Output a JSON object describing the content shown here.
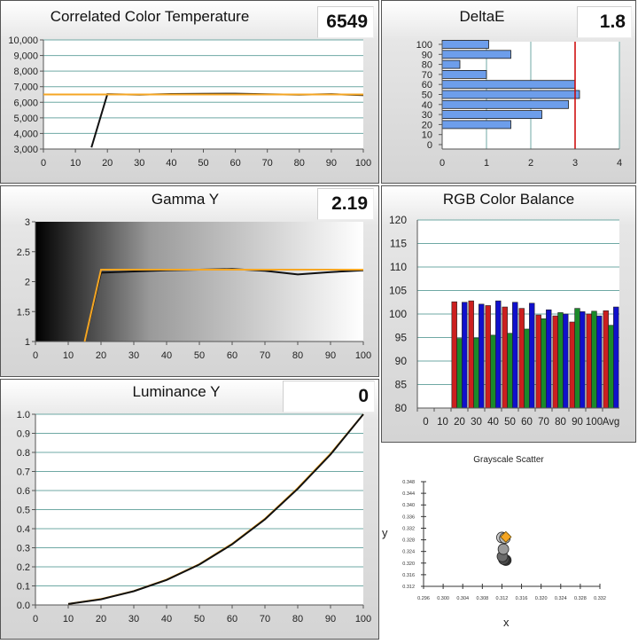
{
  "cct": {
    "title": "Correlated Color Temperature",
    "readout": "6549",
    "chart_data": {
      "type": "line",
      "x": [
        15,
        20,
        30,
        40,
        50,
        60,
        70,
        80,
        90,
        100
      ],
      "series": [
        {
          "values": [
            3100,
            6520,
            6490,
            6530,
            6540,
            6550,
            6510,
            6490,
            6520,
            6460
          ],
          "color": "#111111"
        },
        {
          "values": [
            6500,
            6500,
            6500,
            6500,
            6500,
            6500,
            6500,
            6500,
            6500,
            6500
          ],
          "color": "#f5a623"
        }
      ],
      "target_from_x": 0,
      "xlim": [
        0,
        100
      ],
      "ylim": [
        3000,
        10000
      ],
      "xticks": [
        "0",
        "10",
        "20",
        "30",
        "40",
        "50",
        "60",
        "70",
        "80",
        "90",
        "100"
      ],
      "yticks": [
        "3,000",
        "4,000",
        "5,000",
        "6,000",
        "7,000",
        "8,000",
        "9,000",
        "10,000"
      ]
    }
  },
  "deltae": {
    "title": "DeltaE",
    "readout": "1.8",
    "chart_data": {
      "type": "bar",
      "orientation": "horizontal",
      "categories": [
        0,
        10,
        20,
        30,
        40,
        50,
        60,
        70,
        80,
        90,
        100
      ],
      "values": [
        0,
        0,
        1.55,
        2.25,
        2.85,
        3.1,
        3.0,
        1.0,
        0.4,
        1.55,
        1.05
      ],
      "reference_line": 3,
      "xlim": [
        0,
        4
      ],
      "xticks": [
        "0",
        "1",
        "2",
        "3",
        "4"
      ],
      "yticks": [
        "0",
        "10",
        "20",
        "30",
        "40",
        "50",
        "60",
        "70",
        "80",
        "90",
        "100"
      ],
      "bar_color": "#6d9eeb",
      "reference_color": "#cc0000"
    }
  },
  "gamma": {
    "title": "Gamma Y",
    "readout": "2.19",
    "chart_data": {
      "type": "line",
      "x": [
        15,
        20,
        30,
        40,
        50,
        60,
        70,
        80,
        90,
        100
      ],
      "series": [
        {
          "values": [
            1.0,
            2.15,
            2.17,
            2.19,
            2.2,
            2.21,
            2.18,
            2.12,
            2.16,
            2.19
          ],
          "color": "#111111"
        },
        {
          "values": [
            1.0,
            2.2,
            2.2,
            2.2,
            2.2,
            2.2,
            2.2,
            2.2,
            2.2,
            2.2
          ],
          "color": "#f5a623"
        }
      ],
      "xlim": [
        0,
        100
      ],
      "ylim": [
        1,
        3
      ],
      "xticks": [
        "0",
        "10",
        "20",
        "30",
        "40",
        "50",
        "60",
        "70",
        "80",
        "90",
        "100"
      ],
      "yticks": [
        "1",
        "1.5",
        "2",
        "2.5",
        "3"
      ]
    }
  },
  "rgb": {
    "title": "RGB Color Balance",
    "chart_data": {
      "type": "bar",
      "categories": [
        "0",
        "10",
        "20",
        "30",
        "40",
        "50",
        "60",
        "70",
        "80",
        "90",
        "100",
        "Avg"
      ],
      "series": [
        {
          "color": "#cc1f1f",
          "values": [
            null,
            null,
            102.6,
            102.8,
            101.8,
            101.5,
            101.2,
            99.8,
            99.6,
            98.3,
            100.0,
            100.7
          ]
        },
        {
          "color": "#1a8a2a",
          "values": [
            null,
            null,
            94.8,
            94.9,
            95.5,
            95.9,
            96.8,
            99.0,
            100.3,
            101.2,
            100.6,
            97.6
          ]
        },
        {
          "color": "#1010cc",
          "values": [
            null,
            null,
            102.5,
            102.1,
            102.8,
            102.5,
            102.3,
            100.9,
            100.0,
            100.5,
            99.6,
            101.5
          ]
        }
      ],
      "ylim": [
        80,
        120
      ],
      "xticks": [
        "0",
        "10",
        "20",
        "30",
        "40",
        "50",
        "60",
        "70",
        "80",
        "90",
        "100",
        "Avg"
      ],
      "yticks": [
        "80",
        "85",
        "90",
        "95",
        "100",
        "105",
        "110",
        "115",
        "120"
      ]
    }
  },
  "luminance": {
    "title": "Luminance Y",
    "readout": "0",
    "chart_data": {
      "type": "line",
      "x": [
        10,
        20,
        30,
        40,
        50,
        60,
        70,
        80,
        90,
        100
      ],
      "series": [
        {
          "values": [
            0.005,
            0.031,
            0.073,
            0.133,
            0.214,
            0.321,
            0.452,
            0.613,
            0.793,
            1.0
          ],
          "color": "#f5a623"
        },
        {
          "values": [
            0.005,
            0.03,
            0.072,
            0.131,
            0.212,
            0.318,
            0.449,
            0.609,
            0.789,
            1.0
          ],
          "color": "#111111"
        }
      ],
      "xlim": [
        0,
        100
      ],
      "ylim": [
        0,
        1
      ],
      "xticks": [
        "0",
        "10",
        "20",
        "30",
        "40",
        "50",
        "60",
        "70",
        "80",
        "90",
        "100"
      ],
      "yticks": [
        "0.0",
        "0.1",
        "0.2",
        "0.3",
        "0.4",
        "0.5",
        "0.6",
        "0.7",
        "0.8",
        "0.9",
        "1.0"
      ]
    }
  },
  "scatter": {
    "title": "Grayscale Scatter",
    "xlabel": "x",
    "ylabel": "y",
    "chart_data": {
      "type": "scatter",
      "xlim": [
        0.296,
        0.332
      ],
      "ylim": [
        0.312,
        0.348
      ],
      "xticks": [
        "0.296",
        "0.300",
        "0.304",
        "0.308",
        "0.312",
        "0.316",
        "0.320",
        "0.324",
        "0.328",
        "0.332"
      ],
      "yticks": [
        "0.312",
        "0.316",
        "0.320",
        "0.324",
        "0.328",
        "0.332",
        "0.336",
        "0.340",
        "0.344",
        "0.348"
      ],
      "points": [
        {
          "x": 0.3128,
          "y": 0.321,
          "color": "#333333"
        },
        {
          "x": 0.3124,
          "y": 0.3213,
          "color": "#4a4a4a"
        },
        {
          "x": 0.3121,
          "y": 0.3223,
          "color": "#6a6a6a"
        },
        {
          "x": 0.3123,
          "y": 0.3248,
          "color": "#9a9a9a"
        },
        {
          "x": 0.312,
          "y": 0.3288,
          "color": "#c8c8c8"
        },
        {
          "x": 0.3126,
          "y": 0.3286,
          "color": "#b5b5b5"
        },
        {
          "x": 0.3128,
          "y": 0.329,
          "color": "#f5a623",
          "target": true
        }
      ]
    }
  }
}
